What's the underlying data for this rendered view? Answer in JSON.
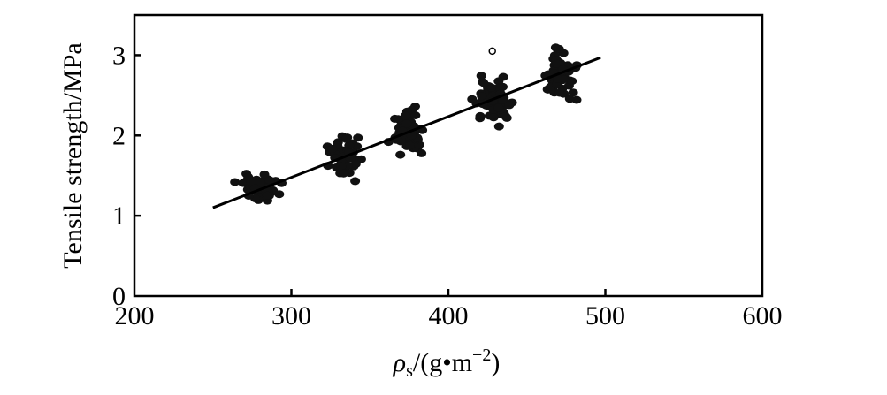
{
  "chart_data": {
    "type": "scatter",
    "title": "",
    "xlabel_main": "ρ",
    "xlabel_sub": "s",
    "xlabel_rest": "/(g•m",
    "xlabel_sup": "−2",
    "xlabel_close": ")",
    "ylabel": "Tensile strength/MPa",
    "xlim": [
      200,
      600
    ],
    "ylim": [
      0,
      3.5
    ],
    "xticks": [
      "200",
      "300",
      "400",
      "500",
      "600"
    ],
    "yticks": [
      "0",
      "1",
      "2",
      "3"
    ],
    "grid": false,
    "fit_line": {
      "x": [
        250,
        497
      ],
      "y": [
        1.1,
        2.97
      ]
    },
    "clusters": [
      {
        "x_center": 280,
        "x_spread": 12,
        "y_center": 1.35,
        "y_spread": 0.15,
        "count": 60
      },
      {
        "x_center": 334,
        "x_spread": 10,
        "y_center": 1.75,
        "y_spread": 0.25,
        "count": 45
      },
      {
        "x_center": 375,
        "x_spread": 10,
        "y_center": 2.05,
        "y_spread": 0.25,
        "count": 55
      },
      {
        "x_center": 429,
        "x_spread": 11,
        "y_center": 2.42,
        "y_spread": 0.25,
        "count": 60
      },
      {
        "x_center": 471,
        "x_spread": 10,
        "y_center": 2.75,
        "y_spread": 0.3,
        "count": 60
      }
    ],
    "open_points": [
      {
        "x": 428,
        "y": 3.05
      }
    ]
  }
}
